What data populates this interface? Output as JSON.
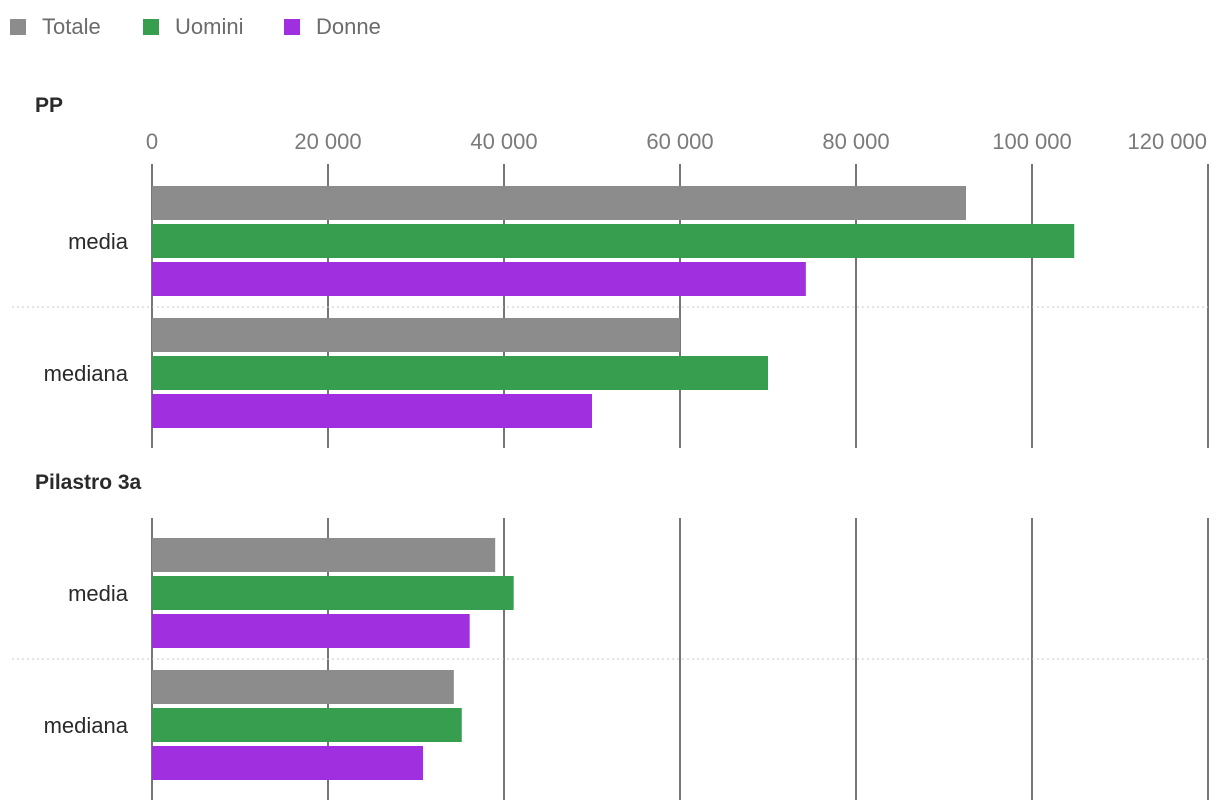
{
  "chart_data": {
    "type": "bar",
    "orientation": "horizontal",
    "legend": [
      {
        "name": "Totale",
        "color": "#8c8c8c"
      },
      {
        "name": "Uomini",
        "color": "#389e4f"
      },
      {
        "name": "Donne",
        "color": "#a02fe0"
      }
    ],
    "xlim": [
      0,
      120000
    ],
    "ticks": [
      0,
      20000,
      40000,
      60000,
      80000,
      100000,
      120000
    ],
    "tick_labels": [
      "0",
      "20 000",
      "40 000",
      "60 000",
      "80 000",
      "100 000",
      "120 000"
    ],
    "groups": [
      {
        "title": "PP",
        "categories": [
          {
            "label": "media",
            "values": [
              92500,
              104800,
              74300
            ]
          },
          {
            "label": "mediana",
            "values": [
              60000,
              70000,
              50000
            ]
          }
        ]
      },
      {
        "title": "Pilastro 3a",
        "categories": [
          {
            "label": "media",
            "values": [
              39000,
              41100,
              36100
            ]
          },
          {
            "label": "mediana",
            "values": [
              34300,
              35200,
              30800
            ]
          }
        ]
      }
    ]
  }
}
